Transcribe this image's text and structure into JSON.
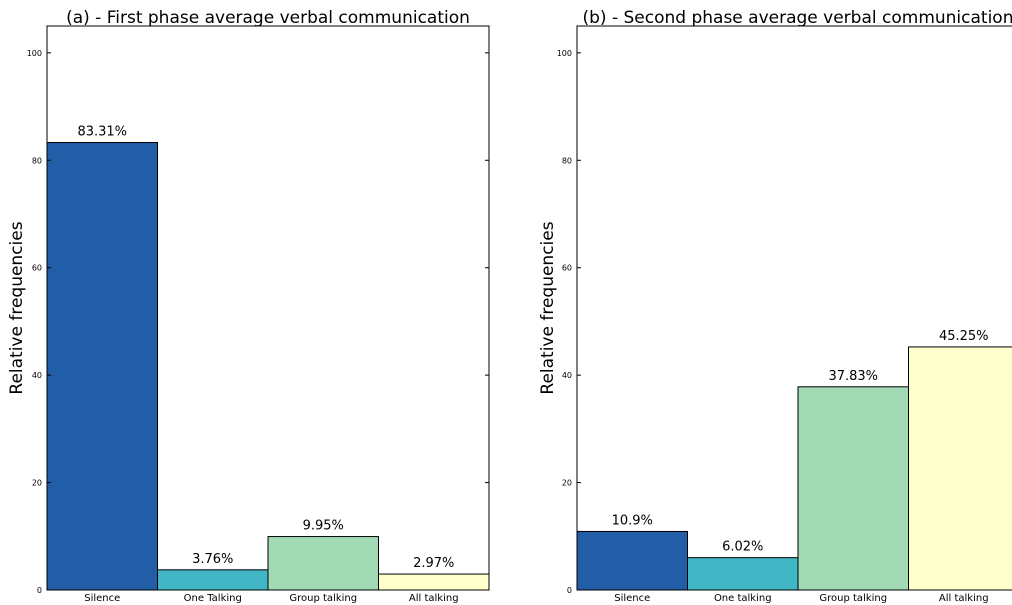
{
  "chart_data": [
    {
      "type": "bar",
      "title": "(a) - First phase average verbal communication",
      "xlabel": "",
      "ylabel": "Relative frequencies",
      "ylim": [
        0,
        105
      ],
      "yticks": [
        0,
        20,
        40,
        60,
        80,
        100
      ],
      "categories": [
        "Silence",
        "One Talking",
        "Group talking",
        "All talking"
      ],
      "values": [
        83.31,
        3.76,
        9.95,
        2.97
      ],
      "data_labels": [
        "83.31%",
        "3.76%",
        "9.95%",
        "2.97%"
      ],
      "colors": [
        "#225ea8",
        "#41b6c4",
        "#a1dab4",
        "#ffffcc"
      ],
      "grid": false
    },
    {
      "type": "bar",
      "title": "(b) - Second phase average verbal communication",
      "xlabel": "",
      "ylabel": "Relative frequencies",
      "ylim": [
        0,
        105
      ],
      "yticks": [
        0,
        20,
        40,
        60,
        80,
        100
      ],
      "categories": [
        "Silence",
        "One talking",
        "Group talking",
        "All talking"
      ],
      "values": [
        10.9,
        6.02,
        37.83,
        45.25
      ],
      "data_labels": [
        "10.9%",
        "6.02%",
        "37.83%",
        "45.25%"
      ],
      "colors": [
        "#225ea8",
        "#41b6c4",
        "#a1dab4",
        "#ffffcc"
      ],
      "grid": false
    }
  ]
}
